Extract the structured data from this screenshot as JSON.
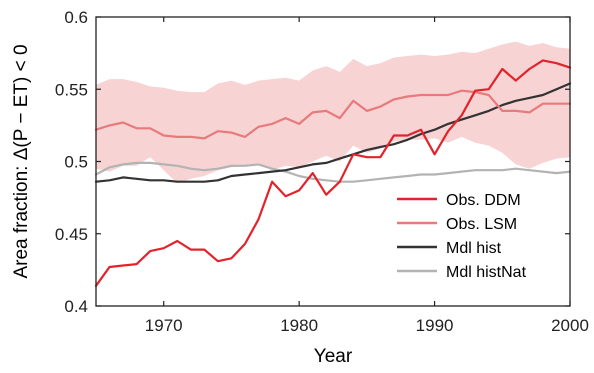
{
  "chart_data": {
    "type": "line",
    "xlabel": "Year",
    "ylabel": "Area fraction: Δ(P − ET) < 0",
    "xlim": [
      1965,
      2000
    ],
    "ylim": [
      0.4,
      0.6
    ],
    "xticks": [
      1970,
      1980,
      1990,
      2000
    ],
    "yticks": [
      0.4,
      0.45,
      0.5,
      0.55,
      0.6
    ],
    "xtick_labels": [
      "1970",
      "1980",
      "1990",
      "2000"
    ],
    "ytick_labels": [
      "0.4",
      "0.45",
      "0.5",
      "0.55",
      "0.6"
    ],
    "grid": false,
    "legend_position": "lower-right",
    "x": [
      1965,
      1966,
      1967,
      1968,
      1969,
      1970,
      1971,
      1972,
      1973,
      1974,
      1975,
      1976,
      1977,
      1978,
      1979,
      1980,
      1981,
      1982,
      1983,
      1984,
      1985,
      1986,
      1987,
      1988,
      1989,
      1990,
      1991,
      1992,
      1993,
      1994,
      1995,
      1996,
      1997,
      1998,
      1999,
      2000
    ],
    "series": [
      {
        "name": "Obs. DDM",
        "color": "#e3232b",
        "values": [
          0.414,
          0.427,
          0.428,
          0.429,
          0.438,
          0.44,
          0.445,
          0.439,
          0.439,
          0.431,
          0.433,
          0.443,
          0.46,
          0.486,
          0.476,
          0.48,
          0.492,
          0.477,
          0.486,
          0.505,
          0.503,
          0.503,
          0.518,
          0.518,
          0.522,
          0.505,
          0.521,
          0.532,
          0.549,
          0.55,
          0.564,
          0.556,
          0.564,
          0.57,
          0.568,
          0.565
        ]
      },
      {
        "name": "Obs. LSM",
        "color": "#e87a7b",
        "values": [
          0.522,
          0.525,
          0.527,
          0.523,
          0.523,
          0.518,
          0.517,
          0.517,
          0.516,
          0.521,
          0.52,
          0.517,
          0.524,
          0.526,
          0.53,
          0.526,
          0.534,
          0.535,
          0.53,
          0.542,
          0.535,
          0.538,
          0.543,
          0.545,
          0.546,
          0.546,
          0.546,
          0.549,
          0.548,
          0.546,
          0.535,
          0.535,
          0.534,
          0.54,
          0.54,
          0.54
        ],
        "band_upper": [
          0.553,
          0.557,
          0.557,
          0.555,
          0.552,
          0.551,
          0.549,
          0.548,
          0.548,
          0.554,
          0.556,
          0.553,
          0.556,
          0.557,
          0.558,
          0.556,
          0.563,
          0.566,
          0.562,
          0.571,
          0.566,
          0.568,
          0.572,
          0.573,
          0.574,
          0.573,
          0.574,
          0.576,
          0.575,
          0.578,
          0.581,
          0.583,
          0.58,
          0.582,
          0.579,
          0.578
        ],
        "band_lower": [
          0.495,
          0.493,
          0.497,
          0.497,
          0.503,
          0.494,
          0.485,
          0.488,
          0.49,
          0.494,
          0.496,
          0.497,
          0.499,
          0.494,
          0.497,
          0.496,
          0.5,
          0.504,
          0.5,
          0.511,
          0.506,
          0.509,
          0.514,
          0.515,
          0.515,
          0.516,
          0.513,
          0.517,
          0.513,
          0.511,
          0.506,
          0.498,
          0.495,
          0.499,
          0.502,
          0.503
        ],
        "band_color": "#f7d3d4"
      },
      {
        "name": "Mdl hist",
        "color": "#333333",
        "values": [
          0.486,
          0.487,
          0.489,
          0.488,
          0.487,
          0.487,
          0.486,
          0.486,
          0.486,
          0.487,
          0.49,
          0.491,
          0.492,
          0.493,
          0.494,
          0.496,
          0.498,
          0.499,
          0.502,
          0.505,
          0.508,
          0.51,
          0.512,
          0.515,
          0.519,
          0.522,
          0.526,
          0.529,
          0.532,
          0.535,
          0.539,
          0.542,
          0.544,
          0.546,
          0.55,
          0.554
        ]
      },
      {
        "name": "Mdl histNat",
        "color": "#b3b3b3",
        "values": [
          0.491,
          0.496,
          0.498,
          0.499,
          0.499,
          0.498,
          0.497,
          0.495,
          0.494,
          0.495,
          0.497,
          0.497,
          0.498,
          0.495,
          0.493,
          0.49,
          0.488,
          0.487,
          0.486,
          0.486,
          0.487,
          0.488,
          0.489,
          0.49,
          0.491,
          0.491,
          0.492,
          0.493,
          0.494,
          0.494,
          0.494,
          0.495,
          0.494,
          0.493,
          0.492,
          0.493
        ]
      }
    ]
  },
  "colors": {
    "axis": "#222222",
    "background": "#ffffff"
  }
}
